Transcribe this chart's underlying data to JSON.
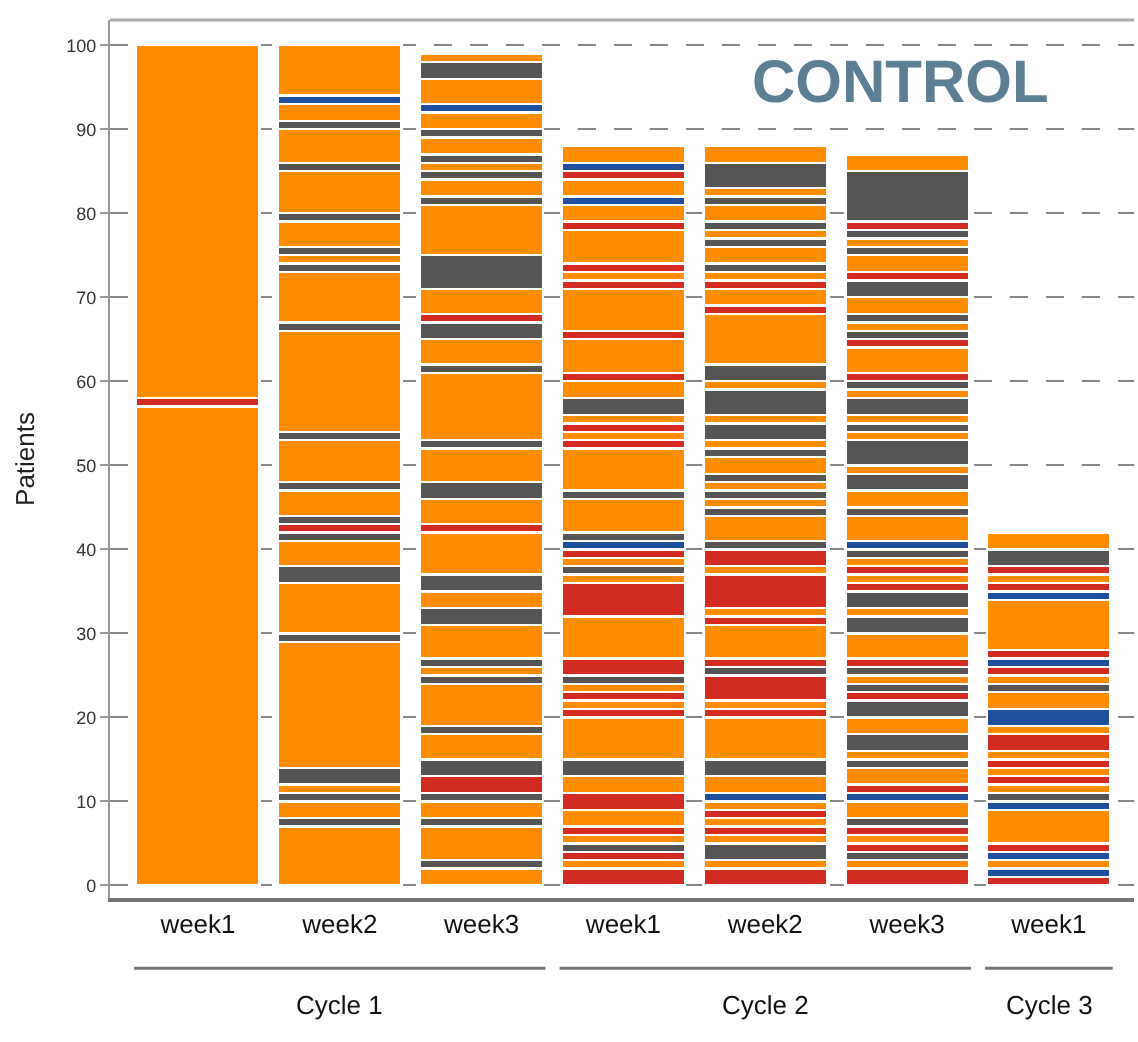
{
  "chart_data": {
    "type": "bar",
    "stacked": true,
    "ylabel": "Patients",
    "ylim": [
      -1.5,
      103
    ],
    "yticks": [
      0,
      10,
      20,
      30,
      40,
      50,
      60,
      70,
      80,
      90,
      100
    ],
    "grid": "y",
    "categories": [
      "week1",
      "week2",
      "week3",
      "week1",
      "week2",
      "week3",
      "week1"
    ],
    "annotations": [
      "CONTROL",
      "Cycle 1",
      "Cycle 2",
      "Cycle 3"
    ],
    "series": [
      {
        "values": [
          57,
          7,
          2,
          2,
          2,
          2,
          1
        ],
        "colors": [
          "#ff8c00",
          "#ff8c00",
          "#ff8c00",
          "#d22b22",
          "#d22b22",
          "#d22b22",
          "#d22b22"
        ]
      },
      {
        "values": [
          1,
          1,
          1,
          1,
          1,
          1,
          1
        ],
        "colors": [
          "#d22b22",
          "#555555",
          "#555555",
          "#ff8c00",
          "#ff8c00",
          "#ff8c00",
          "#1d4f9c"
        ]
      },
      {
        "values": [
          42,
          2,
          4,
          1,
          2,
          1,
          1
        ],
        "colors": [
          "#ff8c00",
          "#ff8c00",
          "#ff8c00",
          "#d22b22",
          "#555555",
          "#555555",
          "#ff8c00"
        ]
      },
      {
        "values": [
          null,
          1,
          1,
          1,
          1,
          1,
          1
        ],
        "colors": [
          null,
          "#555555",
          "#555555",
          "#555555",
          "#ff8c00",
          "#d22b22",
          "#1d4f9c"
        ]
      },
      {
        "values": [
          null,
          1,
          2,
          1,
          1,
          1,
          1
        ],
        "colors": [
          null,
          "#ff8c00",
          "#ff8c00",
          "#ff8c00",
          "#d22b22",
          "#ff8c00",
          "#d22b22"
        ]
      },
      {
        "values": [
          null,
          2,
          1,
          1,
          1,
          1,
          4
        ],
        "colors": [
          null,
          "#555555",
          "#555555",
          "#d22b22",
          "#ff8c00",
          "#d22b22",
          "#ff8c00"
        ]
      },
      {
        "values": [
          null,
          15,
          2,
          2,
          1,
          1,
          1
        ],
        "colors": [
          null,
          "#ff8c00",
          "#d22b22",
          "#ff8c00",
          "#d22b22",
          "#555555",
          "#1d4f9c"
        ]
      },
      {
        "values": [
          null,
          1,
          2,
          2,
          1,
          2,
          1
        ],
        "colors": [
          null,
          "#555555",
          "#555555",
          "#d22b22",
          "#ff8c00",
          "#ff8c00",
          "#555555"
        ]
      },
      {
        "values": [
          null,
          6,
          3,
          2,
          1,
          1,
          1
        ],
        "colors": [
          null,
          "#ff8c00",
          "#ff8c00",
          "#ff8c00",
          "#1d4f9c",
          "#1d4f9c",
          "#ff8c00"
        ]
      },
      {
        "values": [
          null,
          2,
          1,
          2,
          2,
          1,
          1
        ],
        "colors": [
          null,
          "#555555",
          "#555555",
          "#555555",
          "#ff8c00",
          "#d22b22",
          "#d22b22"
        ]
      },
      {
        "values": [
          null,
          3,
          5,
          5,
          2,
          2,
          1
        ],
        "colors": [
          null,
          "#ff8c00",
          "#ff8c00",
          "#ff8c00",
          "#555555",
          "#ff8c00",
          "#ff8c00"
        ]
      },
      {
        "values": [
          null,
          1,
          1,
          1,
          5,
          1,
          1
        ],
        "colors": [
          null,
          "#555555",
          "#555555",
          "#d22b22",
          "#ff8c00",
          "#555555",
          "#d22b22"
        ]
      },
      {
        "values": [
          null,
          1,
          1,
          1,
          1,
          1,
          1
        ],
        "colors": [
          null,
          "#d22b22",
          "#ff8c00",
          "#ff8c00",
          "#d22b22",
          "#ff8c00",
          "#ff8c00"
        ]
      },
      {
        "values": [
          null,
          1,
          1,
          1,
          1,
          2,
          2
        ],
        "colors": [
          null,
          "#555555",
          "#555555",
          "#d22b22",
          "#ff8c00",
          "#555555",
          "#d22b22"
        ]
      },
      {
        "values": [
          null,
          3,
          4,
          1,
          3,
          2,
          1
        ],
        "colors": [
          null,
          "#ff8c00",
          "#ff8c00",
          "#ff8c00",
          "#d22b22",
          "#ff8c00",
          "#ff8c00"
        ]
      },
      {
        "values": [
          null,
          1,
          2,
          1,
          1,
          2,
          2
        ],
        "colors": [
          null,
          "#555555",
          "#555555",
          "#555555",
          "#555555",
          "#555555",
          "#1d4f9c"
        ]
      },
      {
        "values": [
          null,
          5,
          2,
          2,
          1,
          1,
          2
        ],
        "colors": [
          null,
          "#ff8c00",
          "#ff8c00",
          "#d22b22",
          "#d22b22",
          "#d22b22",
          "#ff8c00"
        ]
      },
      {
        "values": [
          null,
          1,
          2,
          5,
          4,
          1,
          1
        ],
        "colors": [
          null,
          "#555555",
          "#555555",
          "#ff8c00",
          "#ff8c00",
          "#555555",
          "#555555"
        ]
      },
      {
        "values": [
          null,
          12,
          5,
          4,
          1,
          1,
          1
        ],
        "colors": [
          null,
          "#ff8c00",
          "#ff8c00",
          "#d22b22",
          "#d22b22",
          "#ff8c00",
          "#ff8c00"
        ]
      },
      {
        "values": [
          null,
          1,
          1,
          1,
          1,
          1,
          1
        ],
        "colors": [
          null,
          "#555555",
          "#d22b22",
          "#ff8c00",
          "#ff8c00",
          "#555555",
          "#d22b22"
        ]
      },
      {
        "values": [
          null,
          6,
          3,
          1,
          4,
          1,
          1
        ],
        "colors": [
          null,
          "#ff8c00",
          "#ff8c00",
          "#555555",
          "#d22b22",
          "#d22b22",
          "#1d4f9c"
        ]
      },
      {
        "values": [
          null,
          1,
          2,
          1,
          1,
          3,
          1
        ],
        "colors": [
          null,
          "#555555",
          "#555555",
          "#ff8c00",
          "#ff8c00",
          "#ff8c00",
          "#d22b22"
        ]
      },
      {
        "values": [
          null,
          1,
          4,
          1,
          2,
          2,
          6
        ],
        "colors": [
          null,
          "#ff8c00",
          "#ff8c00",
          "#d22b22",
          "#d22b22",
          "#555555",
          "#ff8c00"
        ]
      },
      {
        "values": [
          null,
          1,
          1,
          1,
          1,
          1,
          1
        ],
        "colors": [
          null,
          "#555555",
          "#555555",
          "#1d4f9c",
          "#555555",
          "#ff8c00",
          "#1d4f9c"
        ]
      },
      {
        "values": [
          null,
          3,
          8,
          1,
          3,
          2,
          1
        ],
        "colors": [
          null,
          "#ff8c00",
          "#ff8c00",
          "#555555",
          "#ff8c00",
          "#555555",
          "#d22b22"
        ]
      },
      {
        "values": [
          null,
          1,
          1,
          4,
          1,
          1,
          1
        ],
        "colors": [
          null,
          "#555555",
          "#555555",
          "#ff8c00",
          "#555555",
          "#d22b22",
          "#ff8c00"
        ]
      },
      {
        "values": [
          null,
          5,
          3,
          1,
          1,
          1,
          1
        ],
        "colors": [
          null,
          "#ff8c00",
          "#ff8c00",
          "#555555",
          "#ff8c00",
          "#ff8c00",
          "#d22b22"
        ]
      },
      {
        "values": [
          null,
          1,
          2,
          5,
          1,
          1,
          2
        ],
        "colors": [
          null,
          "#555555",
          "#555555",
          "#ff8c00",
          "#555555",
          "#d22b22",
          "#555555"
        ]
      },
      {
        "values": [
          null,
          4,
          1,
          1,
          1,
          1,
          2
        ],
        "colors": [
          null,
          "#ff8c00",
          "#d22b22",
          "#d22b22",
          "#ff8c00",
          "#ff8c00",
          "#ff8c00"
        ]
      },
      {
        "values": [
          null,
          1,
          3,
          1,
          1,
          1,
          null
        ],
        "colors": [
          null,
          "#555555",
          "#ff8c00",
          "#ff8c00",
          "#555555",
          "#555555",
          null
        ]
      },
      {
        "values": [
          null,
          2,
          4,
          1,
          2,
          1,
          null
        ],
        "colors": [
          null,
          "#ff8c00",
          "#555555",
          "#d22b22",
          "#ff8c00",
          "#1d4f9c",
          null
        ]
      },
      {
        "values": [
          null,
          1,
          6,
          1,
          1,
          3,
          null
        ],
        "colors": [
          null,
          "#1d4f9c",
          "#ff8c00",
          "#ff8c00",
          "#555555",
          "#ff8c00",
          null
        ]
      },
      {
        "values": [
          null,
          6,
          1,
          2,
          1,
          1,
          null
        ],
        "colors": [
          null,
          "#ff8c00",
          "#555555",
          "#555555",
          "#ff8c00",
          "#555555",
          null
        ]
      },
      {
        "values": [
          null,
          null,
          2,
          2,
          2,
          2,
          null
        ],
        "colors": [
          null,
          null,
          "#ff8c00",
          "#ff8c00",
          "#555555",
          "#ff8c00",
          null
        ]
      },
      {
        "values": [
          null,
          null,
          1,
          1,
          1,
          2,
          null
        ],
        "colors": [
          null,
          null,
          "#555555",
          "#d22b22",
          "#ff8c00",
          "#555555",
          null
        ]
      },
      {
        "values": [
          null,
          null,
          1,
          4,
          3,
          1,
          null
        ],
        "colors": [
          null,
          null,
          "#ff8c00",
          "#ff8c00",
          "#555555",
          "#ff8c00",
          null
        ]
      },
      {
        "values": [
          null,
          null,
          1,
          1,
          1,
          3,
          null
        ],
        "colors": [
          null,
          null,
          "#555555",
          "#d22b22",
          "#ff8c00",
          "#555555",
          null
        ]
      },
      {
        "values": [
          null,
          null,
          2,
          5,
          2,
          1,
          null
        ],
        "colors": [
          null,
          null,
          "#ff8c00",
          "#ff8c00",
          "#555555",
          "#ff8c00",
          null
        ]
      },
      {
        "values": [
          null,
          null,
          1,
          1,
          6,
          1,
          null
        ],
        "colors": [
          null,
          null,
          "#555555",
          "#d22b22",
          "#ff8c00",
          "#555555",
          null
        ]
      },
      {
        "values": [
          null,
          null,
          2,
          1,
          1,
          1,
          null
        ],
        "colors": [
          null,
          null,
          "#ff8c00",
          "#ff8c00",
          "#d22b22",
          "#ff8c00",
          null
        ]
      },
      {
        "values": [
          null,
          null,
          1,
          1,
          2,
          2,
          null
        ],
        "colors": [
          null,
          null,
          "#1d4f9c",
          "#d22b22",
          "#ff8c00",
          "#555555",
          null
        ]
      },
      {
        "values": [
          null,
          null,
          3,
          4,
          1,
          1,
          null
        ],
        "colors": [
          null,
          null,
          "#ff8c00",
          "#ff8c00",
          "#d22b22",
          "#ff8c00",
          null
        ]
      },
      {
        "values": [
          null,
          null,
          2,
          1,
          1,
          1,
          null
        ],
        "colors": [
          null,
          null,
          "#555555",
          "#d22b22",
          "#ff8c00",
          "#555555",
          null
        ]
      },
      {
        "values": [
          null,
          null,
          1,
          2,
          1,
          1,
          null
        ],
        "colors": [
          null,
          null,
          "#ff8c00",
          "#ff8c00",
          "#555555",
          "#d22b22",
          null
        ]
      },
      {
        "values": [
          null,
          null,
          null,
          1,
          2,
          3,
          null
        ],
        "colors": [
          null,
          null,
          null,
          "#1d4f9c",
          "#ff8c00",
          "#ff8c00",
          null
        ]
      },
      {
        "values": [
          null,
          null,
          null,
          2,
          1,
          1,
          null
        ],
        "colors": [
          null,
          null,
          null,
          "#ff8c00",
          "#555555",
          "#d22b22",
          null
        ]
      },
      {
        "values": [
          null,
          null,
          null,
          1,
          1,
          1,
          null
        ],
        "colors": [
          null,
          null,
          null,
          "#d22b22",
          "#ff8c00",
          "#555555",
          null
        ]
      },
      {
        "values": [
          null,
          null,
          null,
          1,
          1,
          1,
          null
        ],
        "colors": [
          null,
          null,
          null,
          "#1d4f9c",
          "#555555",
          "#ff8c00",
          null
        ]
      },
      {
        "values": [
          null,
          null,
          null,
          2,
          2,
          1,
          null
        ],
        "colors": [
          null,
          null,
          null,
          "#ff8c00",
          "#ff8c00",
          "#555555",
          null
        ]
      },
      {
        "values": [
          null,
          null,
          null,
          null,
          1,
          2,
          null
        ],
        "colors": [
          null,
          null,
          null,
          null,
          "#555555",
          "#ff8c00",
          null
        ]
      },
      {
        "values": [
          null,
          null,
          null,
          null,
          1,
          2,
          null
        ],
        "colors": [
          null,
          null,
          null,
          null,
          "#ff8c00",
          "#555555",
          null
        ]
      },
      {
        "values": [
          null,
          null,
          null,
          null,
          3,
          1,
          null
        ],
        "colors": [
          null,
          null,
          null,
          null,
          "#555555",
          "#d22b22",
          null
        ]
      },
      {
        "values": [
          null,
          null,
          null,
          null,
          2,
          2,
          null
        ],
        "colors": [
          null,
          null,
          null,
          null,
          "#ff8c00",
          "#ff8c00",
          null
        ]
      },
      {
        "values": [
          null,
          null,
          null,
          null,
          null,
          1,
          null
        ],
        "colors": [
          null,
          null,
          null,
          null,
          null,
          "#555555",
          null
        ]
      },
      {
        "values": [
          null,
          null,
          null,
          null,
          null,
          1,
          null
        ],
        "colors": [
          null,
          null,
          null,
          null,
          null,
          "#ff8c00",
          null
        ]
      },
      {
        "values": [
          null,
          null,
          null,
          null,
          null,
          1,
          null
        ],
        "colors": [
          null,
          null,
          null,
          null,
          null,
          "#555555",
          null
        ]
      },
      {
        "values": [
          null,
          null,
          null,
          null,
          null,
          1,
          null
        ],
        "colors": [
          null,
          null,
          null,
          null,
          null,
          "#d22b22",
          null
        ]
      },
      {
        "values": [
          null,
          null,
          null,
          null,
          null,
          6,
          null
        ],
        "colors": [
          null,
          null,
          null,
          null,
          null,
          "#555555",
          null
        ]
      },
      {
        "values": [
          null,
          null,
          null,
          null,
          null,
          2,
          null
        ],
        "colors": [
          null,
          null,
          null,
          null,
          null,
          "#ff8c00",
          null
        ]
      }
    ]
  }
}
